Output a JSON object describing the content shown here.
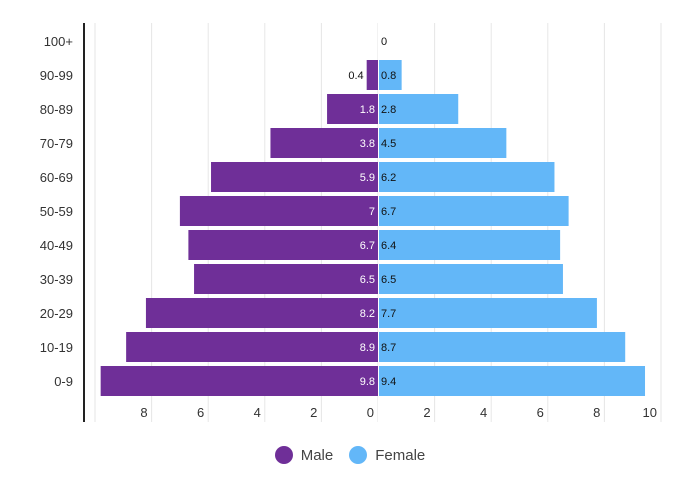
{
  "chart_data": {
    "type": "bar",
    "orientation": "horizontal",
    "variant": "population-pyramid",
    "title": "",
    "xlabel": "",
    "ylabel": "",
    "categories": [
      "100+",
      "90-99",
      "80-89",
      "70-79",
      "60-69",
      "50-59",
      "40-49",
      "30-39",
      "20-29",
      "10-19",
      "0-9"
    ],
    "series": [
      {
        "name": "Male",
        "color": "#6f2f98",
        "side": "left",
        "values": [
          0,
          0.4,
          1.8,
          3.8,
          5.9,
          7,
          6.7,
          6.5,
          8.2,
          8.9,
          9.8
        ],
        "labels": [
          "",
          "0.4",
          "1.8",
          "3.8",
          "5.9",
          "7",
          "6.7",
          "6.5",
          "8.2",
          "8.9",
          "9.8"
        ]
      },
      {
        "name": "Female",
        "color": "#63b7f8",
        "side": "right",
        "values": [
          0,
          0.8,
          2.8,
          4.5,
          6.2,
          6.7,
          6.4,
          6.5,
          7.7,
          8.7,
          9.4
        ],
        "labels": [
          "0",
          "0.8",
          "2.8",
          "4.5",
          "6.2",
          "6.7",
          "6.4",
          "6.5",
          "7.7",
          "8.7",
          "9.4"
        ]
      }
    ],
    "xlim": [
      -10,
      10
    ],
    "xticks_left": [
      "8",
      "6",
      "4",
      "2",
      "0"
    ],
    "xticks_right": [
      "2",
      "4",
      "6",
      "8",
      "10"
    ],
    "grid": true,
    "legend_position": "bottom-center"
  },
  "legend": {
    "male": "Male",
    "female": "Female"
  }
}
